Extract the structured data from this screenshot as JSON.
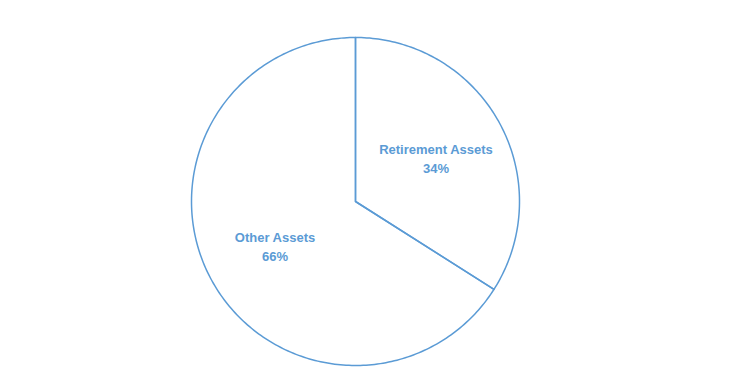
{
  "chart_data": {
    "type": "pie",
    "categories": [
      "Retirement Assets",
      "Other Assets"
    ],
    "values": [
      34,
      66
    ],
    "value_labels": [
      "34%",
      "66%"
    ],
    "data_labels": true,
    "color": "#5b9bd5"
  }
}
